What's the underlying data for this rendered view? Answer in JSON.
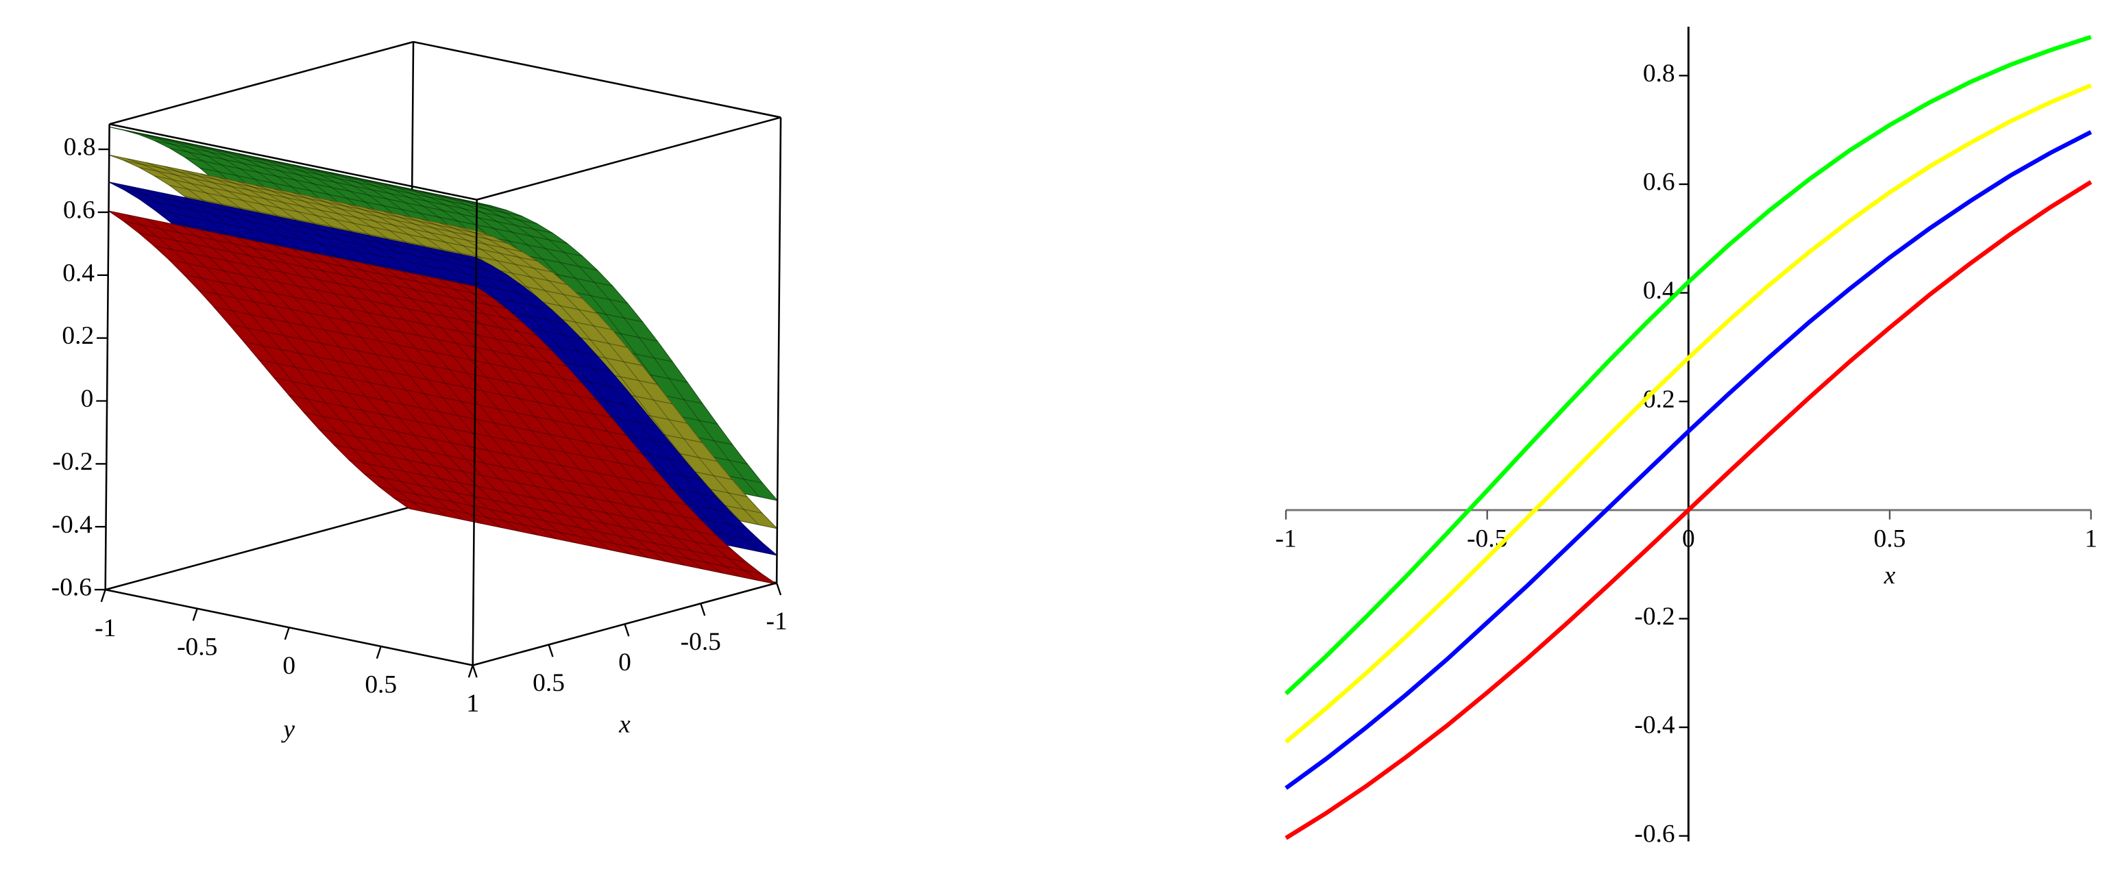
{
  "chart_data": [
    {
      "type": "surface3d",
      "x": [
        -1,
        -0.9,
        -0.8,
        -0.7,
        -0.6,
        -0.5,
        -0.4,
        -0.3,
        -0.2,
        -0.1,
        0,
        0.1,
        0.2,
        0.3,
        0.4,
        0.5,
        0.6,
        0.7,
        0.8,
        0.9,
        1
      ],
      "xlim": [
        -1,
        1
      ],
      "ylim": [
        -1,
        1
      ],
      "zlim": [
        -0.6,
        0.88
      ],
      "xticks": [
        -1,
        -0.5,
        0,
        0.5,
        1
      ],
      "yticks": [
        -1,
        -0.5,
        0,
        0.5,
        1
      ],
      "zticks": [
        -0.6,
        -0.4,
        -0.2,
        0,
        0.2,
        0.4,
        0.6,
        0.8
      ],
      "xlabel": "x",
      "ylabel": "y",
      "series": [
        {
          "color": "#a00000",
          "values": [
            -0.604,
            -0.558,
            -0.508,
            -0.454,
            -0.397,
            -0.336,
            -0.273,
            -0.207,
            -0.139,
            -0.07,
            0,
            0.07,
            0.139,
            0.207,
            0.273,
            0.336,
            0.397,
            0.454,
            0.508,
            0.558,
            0.604
          ]
        },
        {
          "color": "#000090",
          "values": [
            -0.512,
            -0.458,
            -0.4,
            -0.339,
            -0.275,
            -0.207,
            -0.139,
            -0.068,
            0.003,
            0.074,
            0.145,
            0.214,
            0.281,
            0.346,
            0.407,
            0.465,
            0.519,
            0.569,
            0.616,
            0.658,
            0.696
          ]
        },
        {
          "color": "#8a8a1e",
          "values": [
            -0.427,
            -0.365,
            -0.3,
            -0.232,
            -0.161,
            -0.088,
            -0.014,
            0.061,
            0.136,
            0.209,
            0.28,
            0.349,
            0.414,
            0.475,
            0.532,
            0.585,
            0.633,
            0.676,
            0.716,
            0.751,
            0.782
          ]
        },
        {
          "color": "#1e7a1e",
          "values": [
            -0.338,
            -0.269,
            -0.196,
            -0.121,
            -0.043,
            0.036,
            0.116,
            0.195,
            0.273,
            0.348,
            0.42,
            0.488,
            0.551,
            0.609,
            0.662,
            0.709,
            0.751,
            0.788,
            0.82,
            0.847,
            0.871
          ]
        }
      ]
    },
    {
      "type": "line",
      "x": [
        -1,
        -0.9,
        -0.8,
        -0.7,
        -0.6,
        -0.5,
        -0.4,
        -0.3,
        -0.2,
        -0.1,
        0,
        0.1,
        0.2,
        0.3,
        0.4,
        0.5,
        0.6,
        0.7,
        0.8,
        0.9,
        1
      ],
      "xlim": [
        -1,
        1
      ],
      "ylim": [
        -0.61,
        0.89
      ],
      "xticks": [
        -1,
        -0.5,
        0,
        0.5,
        1
      ],
      "yticks": [
        -0.6,
        -0.4,
        -0.2,
        0.2,
        0.4,
        0.6,
        0.8
      ],
      "xlabel": "x",
      "series": [
        {
          "color": "#ff0000",
          "values": [
            -0.604,
            -0.558,
            -0.508,
            -0.454,
            -0.397,
            -0.336,
            -0.273,
            -0.207,
            -0.139,
            -0.07,
            0,
            0.07,
            0.139,
            0.207,
            0.273,
            0.336,
            0.397,
            0.454,
            0.508,
            0.558,
            0.604
          ]
        },
        {
          "color": "#0000ff",
          "values": [
            -0.512,
            -0.458,
            -0.4,
            -0.339,
            -0.275,
            -0.207,
            -0.139,
            -0.068,
            0.003,
            0.074,
            0.145,
            0.214,
            0.281,
            0.346,
            0.407,
            0.465,
            0.519,
            0.569,
            0.616,
            0.658,
            0.696
          ]
        },
        {
          "color": "#ffff00",
          "values": [
            -0.427,
            -0.365,
            -0.3,
            -0.232,
            -0.161,
            -0.088,
            -0.014,
            0.061,
            0.136,
            0.209,
            0.28,
            0.349,
            0.414,
            0.475,
            0.532,
            0.585,
            0.633,
            0.676,
            0.716,
            0.751,
            0.782
          ]
        },
        {
          "color": "#00ff00",
          "values": [
            -0.338,
            -0.269,
            -0.196,
            -0.121,
            -0.043,
            0.036,
            0.116,
            0.195,
            0.273,
            0.348,
            0.42,
            0.488,
            0.551,
            0.609,
            0.662,
            0.709,
            0.751,
            0.788,
            0.82,
            0.847,
            0.871
          ]
        }
      ]
    }
  ]
}
